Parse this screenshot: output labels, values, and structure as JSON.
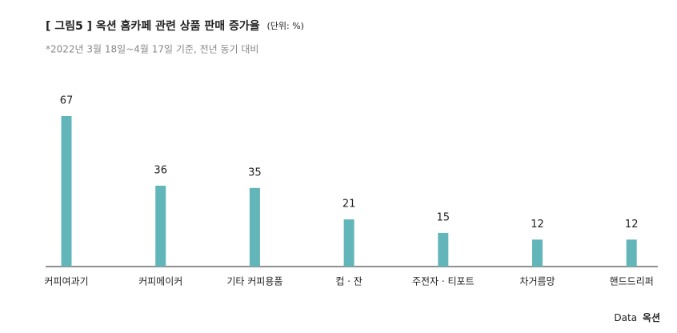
{
  "chart_data": {
    "type": "bar",
    "title": "[ 그림5 ] 옥션 홈카페 관련 상품 판매 증가율",
    "unit": "(단위: %)",
    "subtitle": "*2022년 3월 18일~4월 17일 기준, 전년 동기 대비",
    "categories": [
      "커피여과기",
      "커피메이커",
      "기타 커피용품",
      "컵 · 잔",
      "주전자 · 티포트",
      "차거름망",
      "핸드드리퍼"
    ],
    "values": [
      67,
      36,
      35,
      21,
      15,
      12,
      12
    ],
    "color": "#62b6b9",
    "source_label": "Data",
    "source": "옥션"
  }
}
